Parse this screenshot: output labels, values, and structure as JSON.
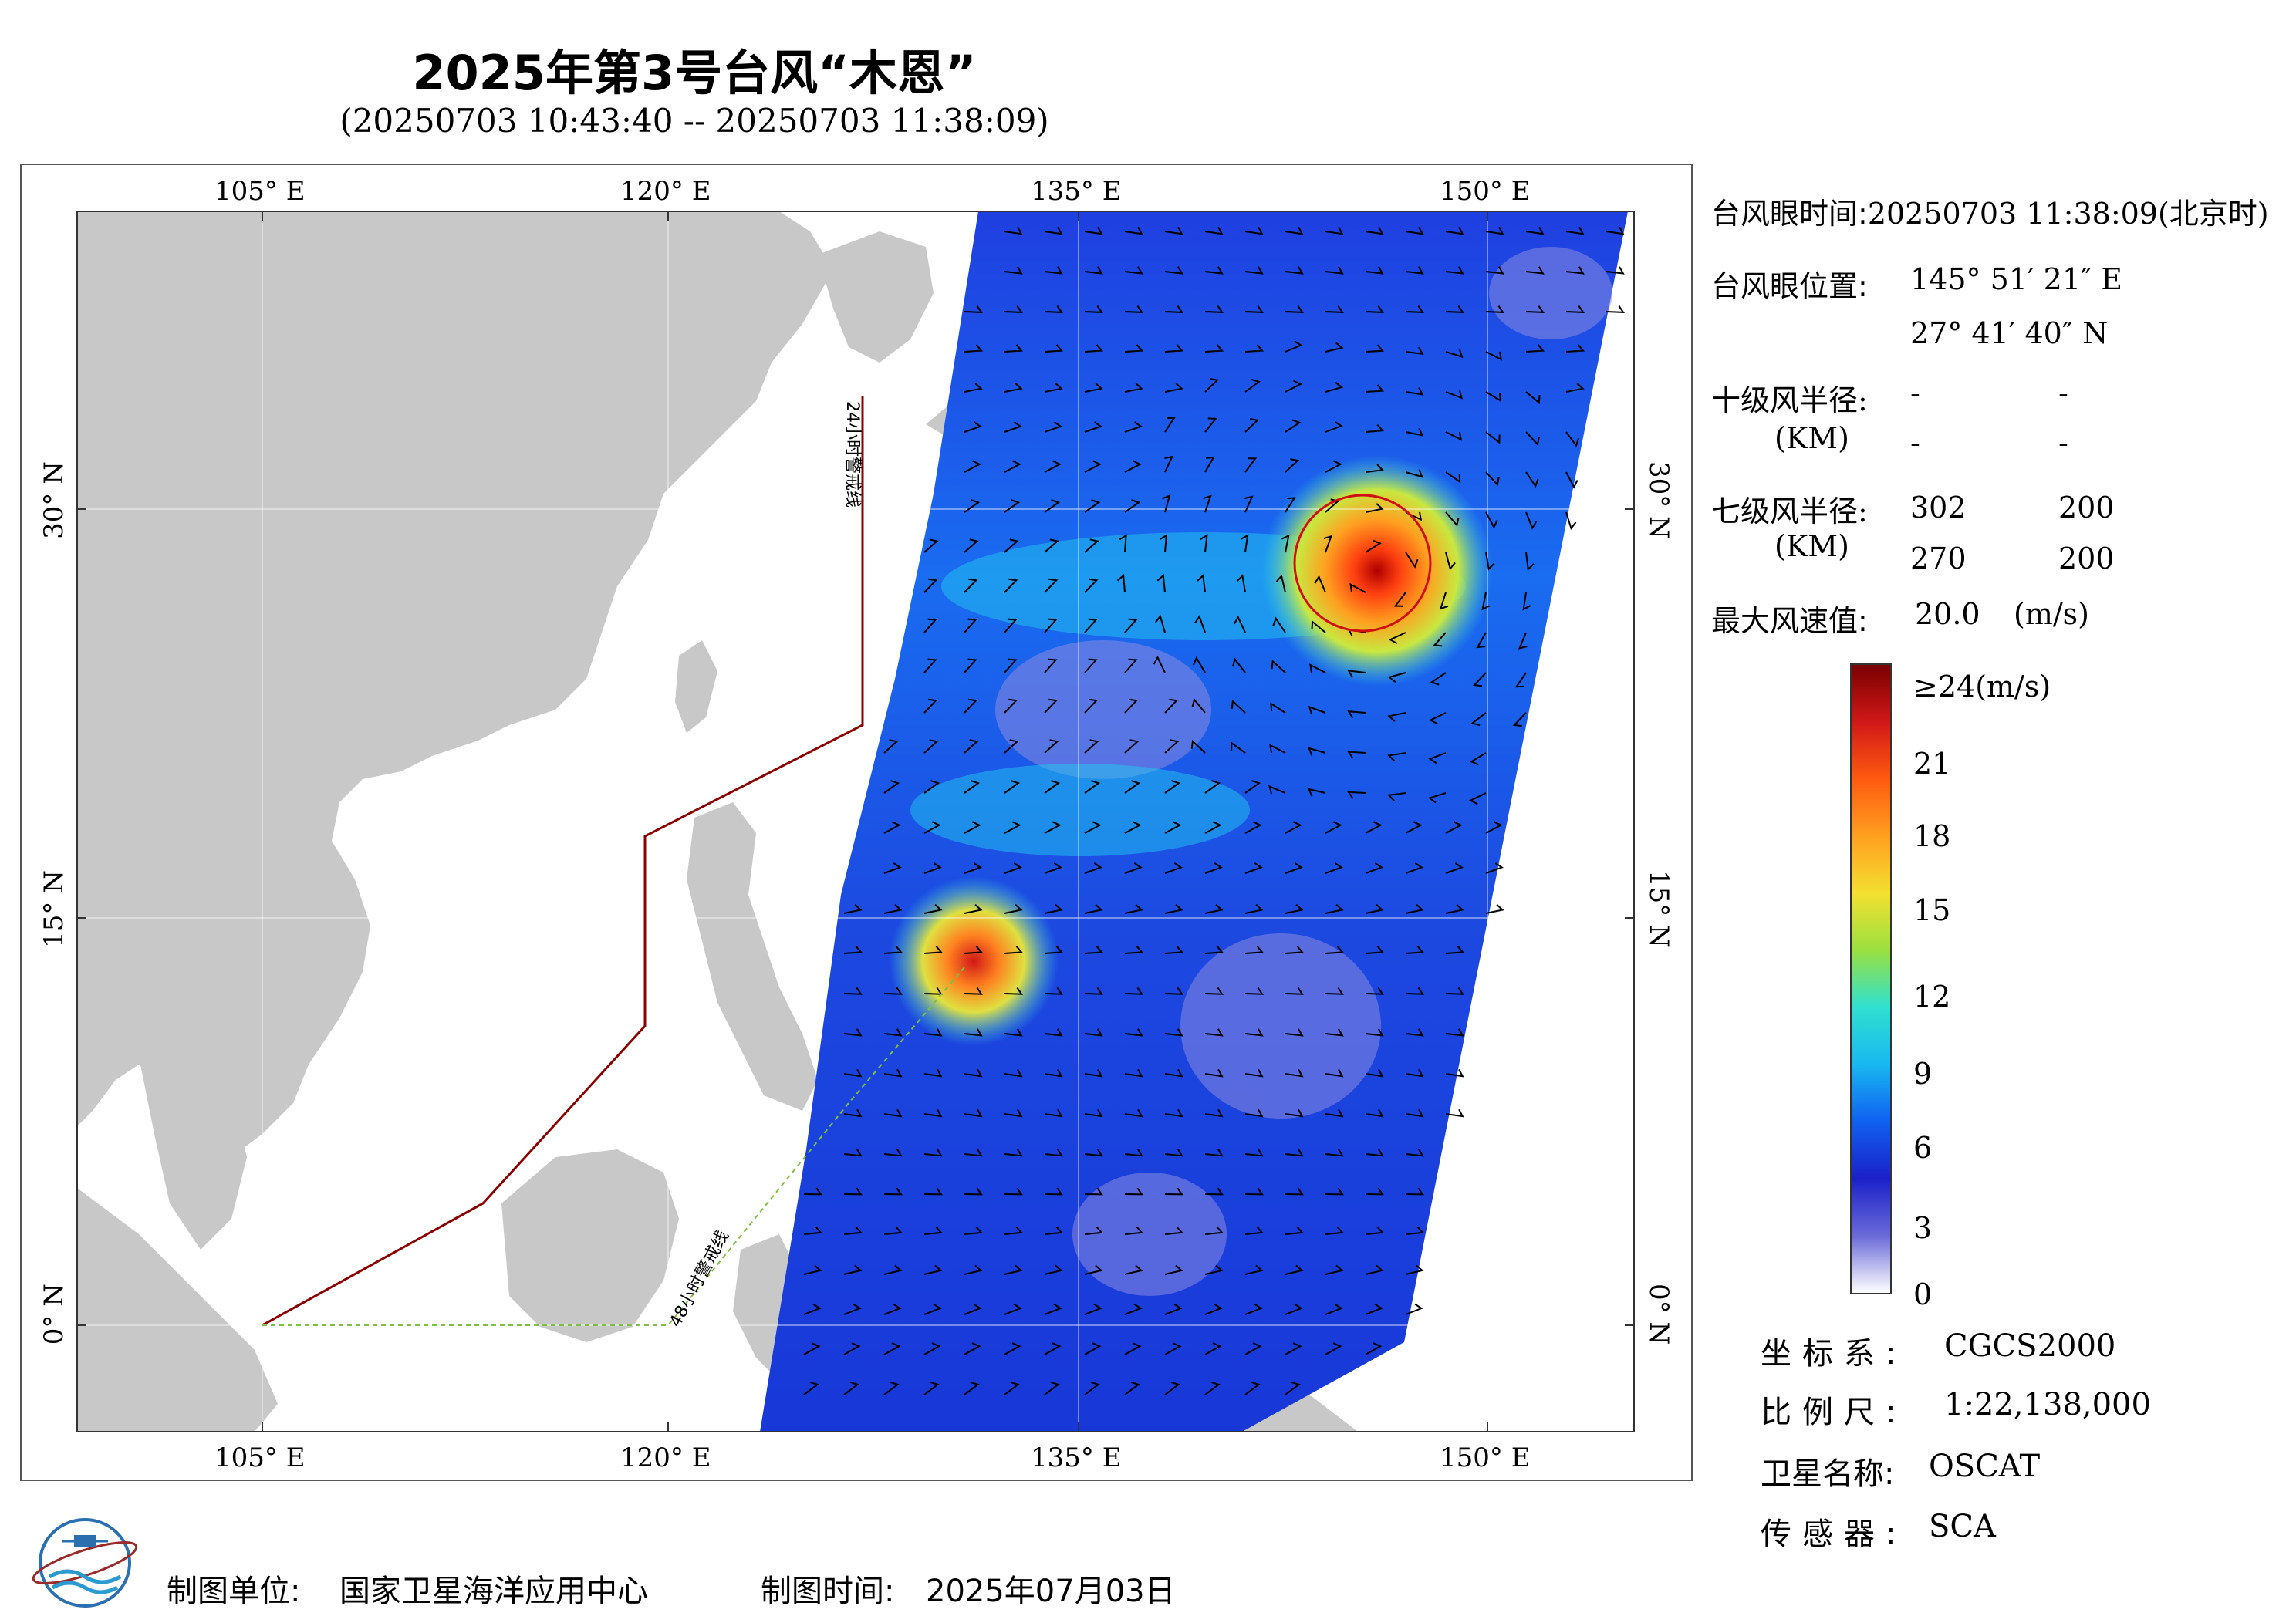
{
  "title": "2025年第3号台风“木恩”",
  "subtitle": "(20250703 10:43:40 -- 20250703 11:38:09)",
  "map": {
    "top_lon_ticks": [
      "105° E",
      "120° E",
      "135° E",
      "150° E"
    ],
    "bottom_lon_ticks": [
      "105° E",
      "120° E",
      "135° E",
      "150° E"
    ],
    "left_lat_ticks": [
      "30° N",
      "15° N",
      "0° N"
    ],
    "right_lat_ticks": [
      "30° N",
      "15° N",
      "0° N"
    ],
    "warning_line_24h": "24小时警戒线",
    "warning_line_48h": "48小时警戒线",
    "colors": {
      "land": "#c8c8c8",
      "ocean": "#ffffff",
      "warning_24h": "#8b0000",
      "warning_48h": "#7fbf3f",
      "wind_radius_circle": "#d01010"
    }
  },
  "info": {
    "eye_time_label": "台风眼时间:",
    "eye_time_value": "20250703 11:38:09(北京时)",
    "eye_pos_label": "台风眼位置:",
    "eye_lon": "145° 51′ 21″ E",
    "eye_lat": "27° 41′ 40″ N",
    "r10_label": "十级风半径:",
    "r10_unit": "(KM)",
    "r10_values": [
      "-",
      "-",
      "-",
      "-"
    ],
    "r7_label": "七级风半径:",
    "r7_unit": "(KM)",
    "r7_values": [
      "302",
      "200",
      "270",
      "200"
    ],
    "max_wind_label": "最大风速值:",
    "max_wind_value": "20.0",
    "max_wind_unit": "(m/s)"
  },
  "colorbar": {
    "labels": [
      "≥24(m/s)",
      "21",
      "18",
      "15",
      "12",
      "9",
      "6",
      "3",
      "0"
    ],
    "stops": [
      "#7a0000",
      "#d01818",
      "#ff5a10",
      "#ffa020",
      "#f4e030",
      "#9ae040",
      "#30e0d0",
      "#18b8f0",
      "#1060f0",
      "#1a20c8",
      "#6a6ad8",
      "#ffffff"
    ]
  },
  "meta": {
    "crs_label": "坐标系:",
    "crs_value": "CGCS2000",
    "scale_label": "比例尺:",
    "scale_value": "1:22,138,000",
    "sat_label": "卫星名称:",
    "sat_value": "OSCAT",
    "sensor_label": "传感器:",
    "sensor_value": "SCA"
  },
  "footer": {
    "producer_label": "制图单位:",
    "producer_value": "国家卫星海洋应用中心",
    "date_label": "制图时间:",
    "date_value": "2025年07月03日"
  },
  "icons": {
    "logo": "nsoas-logo-icon"
  }
}
